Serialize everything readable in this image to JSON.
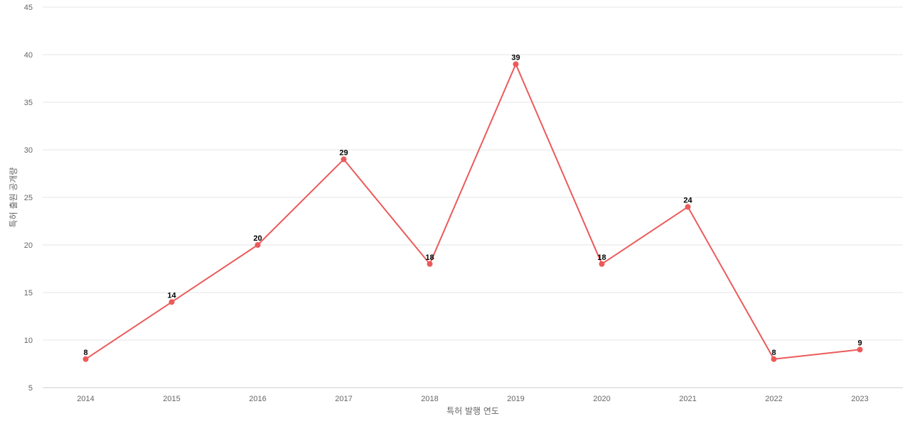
{
  "chart_data": {
    "type": "line",
    "x": [
      "2014",
      "2015",
      "2016",
      "2017",
      "2018",
      "2019",
      "2020",
      "2021",
      "2022",
      "2023"
    ],
    "series": [
      {
        "values": [
          8,
          14,
          20,
          29,
          18,
          39,
          18,
          24,
          8,
          9
        ],
        "color": "#eb5a5a"
      }
    ],
    "xlabel": "특허 발행 연도",
    "ylabel": "특허 출원 공개량",
    "ylim": [
      5,
      45
    ],
    "yticks": [
      5,
      10,
      15,
      20,
      25,
      30,
      35,
      40,
      45
    ],
    "grid": true,
    "legend": "none",
    "data_labels": true
  }
}
